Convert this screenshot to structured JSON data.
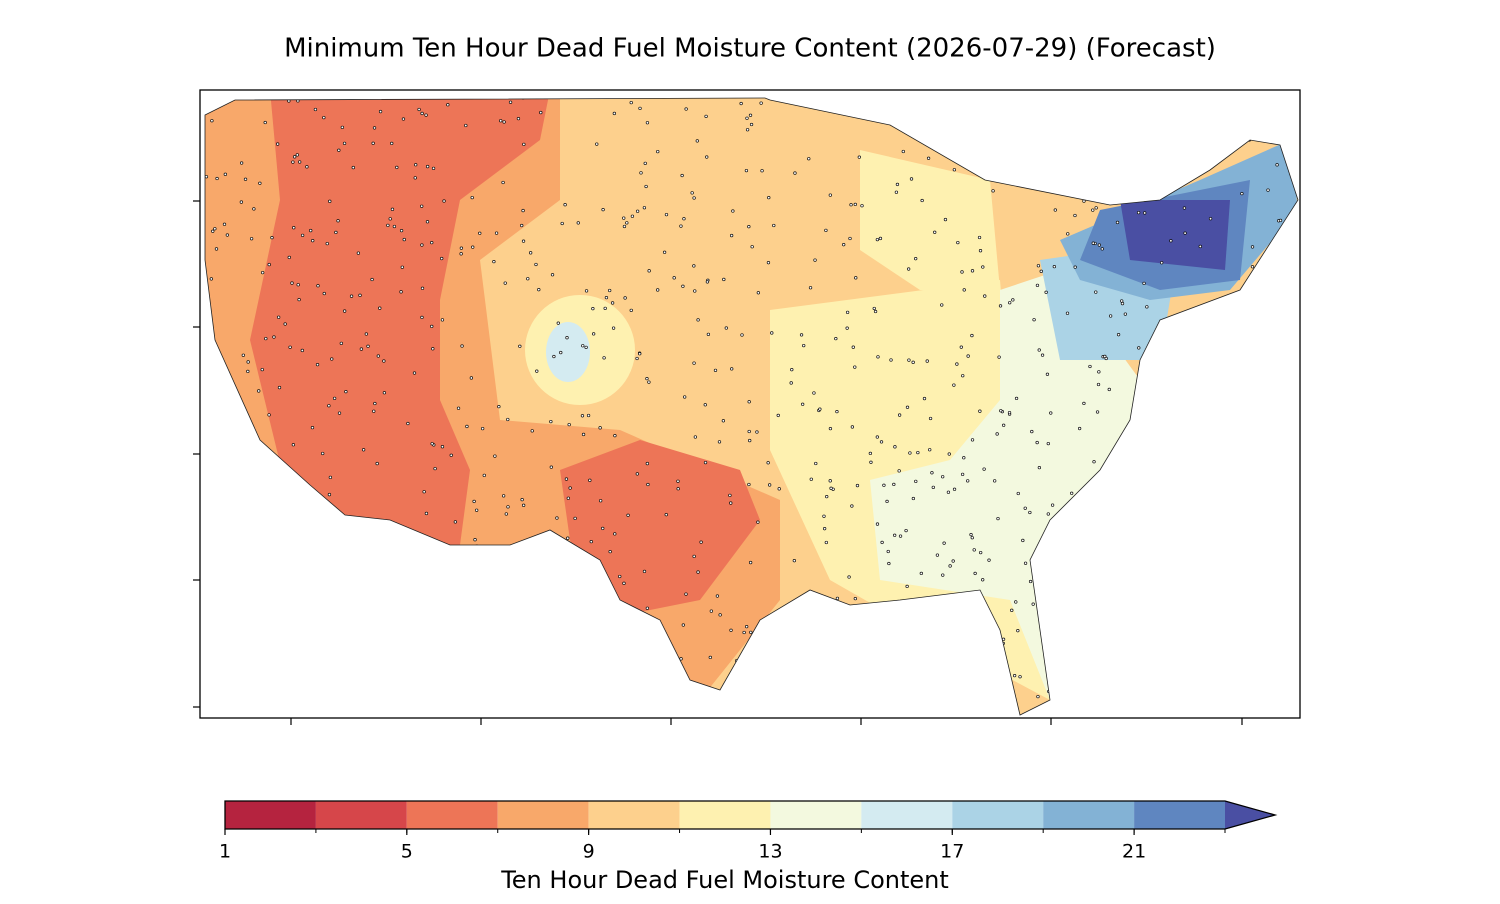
{
  "chart_data": {
    "type": "map",
    "title": "Minimum Ten Hour Dead Fuel Moisture Content (2026-07-29) (Forecast)",
    "colorbar": {
      "label": "Ten Hour Dead Fuel Moisture Content",
      "levels": [
        1,
        3,
        5,
        7,
        9,
        11,
        13,
        15,
        17,
        19,
        21,
        23
      ],
      "colors": [
        "#b5233f",
        "#d6464a",
        "#ed7557",
        "#f8a86a",
        "#fdd08d",
        "#fef1b0",
        "#f3f9df",
        "#d4ebf1",
        "#abd3e6",
        "#83b2d5",
        "#5f86c0"
      ],
      "extend_color": "#4a4fa3",
      "ticks": [
        1,
        5,
        9,
        13,
        17,
        21
      ]
    }
  }
}
